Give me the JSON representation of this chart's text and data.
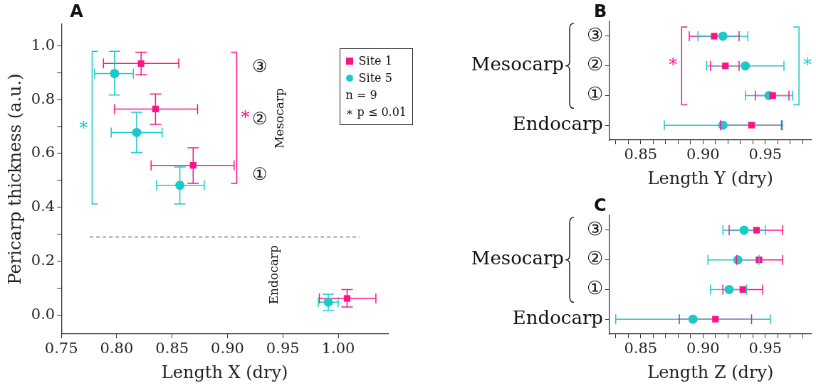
{
  "chart_data": [
    {
      "type": "scatter",
      "title": "A",
      "xlabel": "Length X (dry)",
      "ylabel": "Pericarp thickness (a.u.)",
      "xlim": [
        0.75,
        1.045
      ],
      "xticks": [
        0.75,
        {
          "value": 0.8,
          "label": "0.80"
        },
        0.85,
        {
          "value": 0.9,
          "label": "0.90"
        },
        0.95,
        {
          "value": 1.0,
          "label": "1.00"
        }
      ],
      "ylim": [
        -0.07,
        1.08
      ],
      "yticks": [
        {
          "value": 0,
          "label": "0.0"
        },
        {
          "value": 0.1,
          "label": null
        },
        0.2,
        {
          "value": 0.3,
          "label": null
        },
        0.4,
        {
          "value": 0.5,
          "label": null
        },
        0.6,
        {
          "value": 0.7,
          "label": null
        },
        0.8,
        {
          "value": 0.9,
          "label": null
        },
        {
          "value": 1.0,
          "label": "1.0"
        }
      ],
      "legend": "top right",
      "series": [
        {
          "name": "Site 1",
          "color": "#ff1187",
          "marker": "square",
          "x": [
            0.822,
            0.835,
            0.869,
            1.008
          ],
          "values": [
            0.934,
            0.765,
            0.556,
            0.062
          ],
          "errors": [
            [
              0.892,
              0.976
            ],
            [
              0.708,
              0.821
            ],
            [
              0.489,
              0.621
            ],
            [
              0.03,
              0.095
            ]
          ],
          "xerrors": [
            [
              0.788,
              0.856
            ],
            [
              0.798,
              0.873
            ],
            [
              0.831,
              0.906
            ],
            [
              0.983,
              1.034
            ]
          ]
        },
        {
          "name": "Site 5",
          "color": "#1cc8c8",
          "marker": "circle",
          "x": [
            0.798,
            0.818,
            0.857,
            0.991
          ],
          "values": [
            0.897,
            0.678,
            0.482,
            0.048
          ],
          "errors": [
            [
              0.817,
              0.979
            ],
            [
              0.604,
              0.753
            ],
            [
              0.413,
              0.55
            ],
            [
              0.018,
              0.078
            ]
          ],
          "xerrors": [
            [
              0.78,
              0.815
            ],
            [
              0.795,
              0.841
            ],
            [
              0.836,
              0.879
            ],
            [
              0.982,
              1.0
            ]
          ]
        }
      ],
      "ref_lines": [
        {
          "axis": "y",
          "value": 0.29,
          "color": "#333333",
          "line_style": "dashed"
        }
      ],
      "annotations": [
        "③",
        "②",
        "①",
        "Mesocarp",
        "Endocarp",
        "*",
        "*",
        "n = 9",
        "∗ p ≤ 0.01"
      ]
    },
    {
      "type": "scatter",
      "orientation": "horizontal",
      "title": "B",
      "xlabel": "Length Y (dry)",
      "categories": [
        "③",
        "②",
        "①",
        "Endocarp"
      ],
      "xlim": [
        0.825,
        0.987
      ],
      "xticks": [
        {
          "value": 0.83,
          "label": null
        },
        {
          "value": 0.84,
          "label": null
        },
        0.85,
        {
          "value": 0.86,
          "label": null
        },
        {
          "value": 0.87,
          "label": null
        },
        {
          "value": 0.88,
          "label": null
        },
        {
          "value": 0.89,
          "label": null
        },
        {
          "value": 0.9,
          "label": "0.90"
        },
        {
          "value": 0.91,
          "label": null
        },
        {
          "value": 0.92,
          "label": null
        },
        {
          "value": 0.93,
          "label": null
        },
        {
          "value": 0.94,
          "label": null
        },
        0.95,
        {
          "value": 0.96,
          "label": null
        },
        {
          "value": 0.97,
          "label": null
        },
        {
          "value": 0.98,
          "label": null
        }
      ],
      "series": [
        {
          "color": "#ff1187",
          "marker": "square",
          "values": [
            0.909,
            0.918,
            0.956,
            0.939
          ],
          "errors": [
            [
              0.889,
              0.929
            ],
            [
              0.906,
              0.929
            ],
            [
              0.942,
              0.969
            ],
            [
              0.914,
              0.963
            ]
          ]
        },
        {
          "color": "#1cc8c8",
          "marker": "circle",
          "values": [
            0.916,
            0.934,
            0.953,
            0.916
          ],
          "errors": [
            [
              0.896,
              0.936
            ],
            [
              0.903,
              0.965
            ],
            [
              0.934,
              0.972
            ],
            [
              0.869,
              0.964
            ]
          ]
        }
      ],
      "annotations": [
        "Mesocarp",
        "*",
        "*"
      ]
    },
    {
      "type": "scatter",
      "orientation": "horizontal",
      "title": "C",
      "xlabel": "Length Z (dry)",
      "categories": [
        "③",
        "②",
        "①",
        "Endocarp"
      ],
      "xlim": [
        0.825,
        0.987
      ],
      "xticks": [
        {
          "value": 0.83,
          "label": null
        },
        {
          "value": 0.84,
          "label": null
        },
        0.85,
        {
          "value": 0.86,
          "label": null
        },
        {
          "value": 0.87,
          "label": null
        },
        {
          "value": 0.88,
          "label": null
        },
        {
          "value": 0.89,
          "label": null
        },
        {
          "value": 0.9,
          "label": "0.90"
        },
        {
          "value": 0.91,
          "label": null
        },
        {
          "value": 0.92,
          "label": null
        },
        {
          "value": 0.93,
          "label": null
        },
        {
          "value": 0.94,
          "label": null
        },
        0.95,
        {
          "value": 0.96,
          "label": null
        },
        {
          "value": 0.97,
          "label": null
        },
        {
          "value": 0.98,
          "label": null
        }
      ],
      "series": [
        {
          "color": "#ff1187",
          "marker": "square",
          "values": [
            0.943,
            0.945,
            0.932,
            0.91
          ],
          "errors": [
            [
              0.921,
              0.964
            ],
            [
              0.927,
              0.964
            ],
            [
              0.916,
              0.948
            ],
            [
              0.881,
              0.939
            ]
          ]
        },
        {
          "color": "#1cc8c8",
          "marker": "circle",
          "values": [
            0.933,
            0.928,
            0.921,
            0.892
          ],
          "errors": [
            [
              0.916,
              0.95
            ],
            [
              0.904,
              0.945
            ],
            [
              0.906,
              0.935
            ],
            [
              0.83,
              0.954
            ]
          ]
        }
      ],
      "annotations": [
        "Mesocarp"
      ]
    }
  ]
}
